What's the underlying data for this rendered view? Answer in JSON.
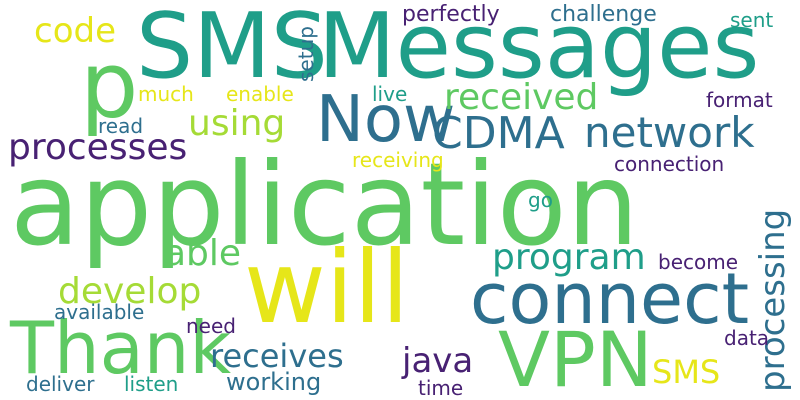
{
  "palette": {
    "dark_purple": "#482173",
    "blue": "#2e6f8e",
    "teal": "#1f9e89",
    "green": "#5ec962",
    "yellow": "#e6e619",
    "light_green": "#a5db36"
  },
  "words": [
    {
      "text": "application",
      "color": "green"
    },
    {
      "text": "will",
      "color": "yellow"
    },
    {
      "text": "Messages",
      "color": "teal"
    },
    {
      "text": "SMS",
      "color": "teal"
    },
    {
      "text": "p",
      "color": "green"
    },
    {
      "text": "connect",
      "color": "blue"
    },
    {
      "text": "Thank",
      "color": "green"
    },
    {
      "text": "VPN",
      "color": "green"
    },
    {
      "text": "Now",
      "color": "blue"
    },
    {
      "text": "network",
      "color": "blue"
    },
    {
      "text": "CDMA",
      "color": "blue"
    },
    {
      "text": "processes",
      "color": "dark_purple"
    },
    {
      "text": "received",
      "color": "green"
    },
    {
      "text": "using",
      "color": "light_green"
    },
    {
      "text": "processing",
      "color": "blue"
    },
    {
      "text": "program",
      "color": "teal"
    },
    {
      "text": "develop",
      "color": "light_green"
    },
    {
      "text": "able",
      "color": "green"
    },
    {
      "text": "receives",
      "color": "blue"
    },
    {
      "text": "java",
      "color": "dark_purple"
    },
    {
      "text": "code",
      "color": "yellow"
    },
    {
      "text": "SMS",
      "color": "yellow"
    },
    {
      "text": "working",
      "color": "blue"
    },
    {
      "text": "perfectly",
      "color": "dark_purple"
    },
    {
      "text": "challenge",
      "color": "blue"
    },
    {
      "text": "sent",
      "color": "teal"
    },
    {
      "text": "setup",
      "color": "blue"
    },
    {
      "text": "much",
      "color": "yellow"
    },
    {
      "text": "enable",
      "color": "yellow"
    },
    {
      "text": "live",
      "color": "teal"
    },
    {
      "text": "format",
      "color": "dark_purple"
    },
    {
      "text": "read",
      "color": "blue"
    },
    {
      "text": "receiving",
      "color": "yellow"
    },
    {
      "text": "connection",
      "color": "dark_purple"
    },
    {
      "text": "go",
      "color": "teal"
    },
    {
      "text": "become",
      "color": "dark_purple"
    },
    {
      "text": "available",
      "color": "blue"
    },
    {
      "text": "need",
      "color": "dark_purple"
    },
    {
      "text": "data",
      "color": "dark_purple"
    },
    {
      "text": "deliver",
      "color": "blue"
    },
    {
      "text": "listen",
      "color": "teal"
    },
    {
      "text": "time",
      "color": "dark_purple"
    }
  ]
}
